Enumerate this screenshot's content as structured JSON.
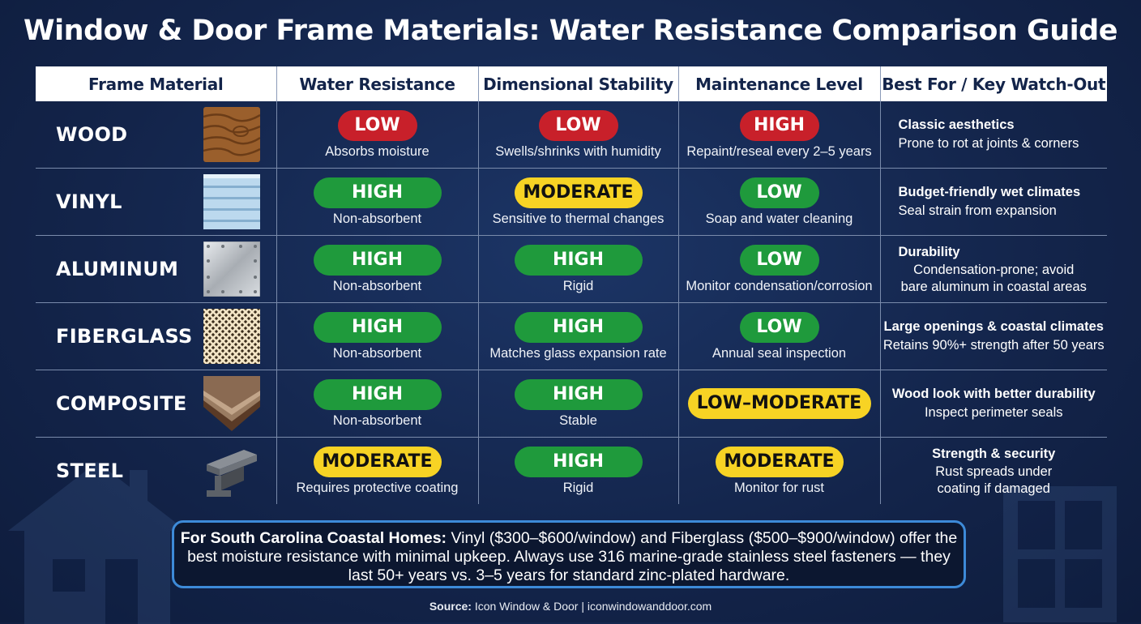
{
  "title": "Window & Door Frame Materials: Water Resistance Comparison Guide",
  "headers": [
    "Frame Material",
    "Water Resistance",
    "Dimensional Stability",
    "Maintenance Level",
    "Best For / Key Watch-Out"
  ],
  "rows": [
    {
      "material": "WOOD",
      "icon": "wood-grain-icon",
      "water": {
        "level": "LOW",
        "color": "red",
        "note": "Absorbs moisture"
      },
      "stability": {
        "level": "LOW",
        "color": "red",
        "note": "Swells/shrinks with humidity"
      },
      "maintenance": {
        "level": "HIGH",
        "color": "red",
        "note": "Repaint/reseal every 2–5 years"
      },
      "best_title": "Classic aesthetics",
      "best_note": "Prone to rot at joints & corners"
    },
    {
      "material": "VINYL",
      "icon": "vinyl-siding-icon",
      "water": {
        "level": "HIGH",
        "color": "green",
        "note": "Non-absorbent"
      },
      "stability": {
        "level": "MODERATE",
        "color": "yellow",
        "note": "Sensitive to thermal changes"
      },
      "maintenance": {
        "level": "LOW",
        "color": "green",
        "note": "Soap and water cleaning"
      },
      "best_title": "Budget-friendly wet climates",
      "best_note": "Seal strain from expansion"
    },
    {
      "material": "ALUMINUM",
      "icon": "aluminum-plate-icon",
      "water": {
        "level": "HIGH",
        "color": "green",
        "note": "Non-absorbent"
      },
      "stability": {
        "level": "HIGH",
        "color": "green",
        "note": "Rigid"
      },
      "maintenance": {
        "level": "LOW",
        "color": "green",
        "note": "Monitor condensation/corrosion"
      },
      "best_title": "Durability",
      "best_note": "Condensation-prone; avoid bare aluminum in coastal areas"
    },
    {
      "material": "FIBERGLASS",
      "icon": "fiberglass-weave-icon",
      "water": {
        "level": "HIGH",
        "color": "green",
        "note": "Non-absorbent"
      },
      "stability": {
        "level": "HIGH",
        "color": "green",
        "note": "Matches glass expansion rate"
      },
      "maintenance": {
        "level": "LOW",
        "color": "green",
        "note": "Annual seal inspection"
      },
      "best_title": "Large openings & coastal climates",
      "best_note": "Retains 90%+ strength after 50 years"
    },
    {
      "material": "COMPOSITE",
      "icon": "composite-layers-icon",
      "water": {
        "level": "HIGH",
        "color": "green",
        "note": "Non-absorbent"
      },
      "stability": {
        "level": "HIGH",
        "color": "green",
        "note": "Stable"
      },
      "maintenance": {
        "level": "LOW–MODERATE",
        "color": "yellow",
        "note": ""
      },
      "best_title": "Wood look with better durability",
      "best_note": "Inspect perimeter seals"
    },
    {
      "material": "STEEL",
      "icon": "steel-beam-icon",
      "water": {
        "level": "MODERATE",
        "color": "yellow",
        "note": "Requires protective coating"
      },
      "stability": {
        "level": "HIGH",
        "color": "green",
        "note": "Rigid"
      },
      "maintenance": {
        "level": "MODERATE",
        "color": "yellow",
        "note": "Monitor for rust"
      },
      "best_title": "Strength & security",
      "best_note": "Rust spreads under coating if damaged"
    }
  ],
  "note": {
    "lead": "For South Carolina Coastal Homes:",
    "text": "Vinyl ($300–$600/window) and Fiberglass ($500–$900/window) offer the best moisture resistance with minimal upkeep. Always use 316 marine-grade stainless steel fasteners — they last 50+ years vs. 3–5 years for standard zinc-plated hardware."
  },
  "source": {
    "label": "Source:",
    "text": "Icon Window & Door | iconwindowanddoor.com"
  },
  "colors": {
    "red": "#c8202a",
    "green": "#1f9a3c",
    "yellow": "#f7d324",
    "navy": "#13244a",
    "note_border": "#3d8ad8"
  }
}
